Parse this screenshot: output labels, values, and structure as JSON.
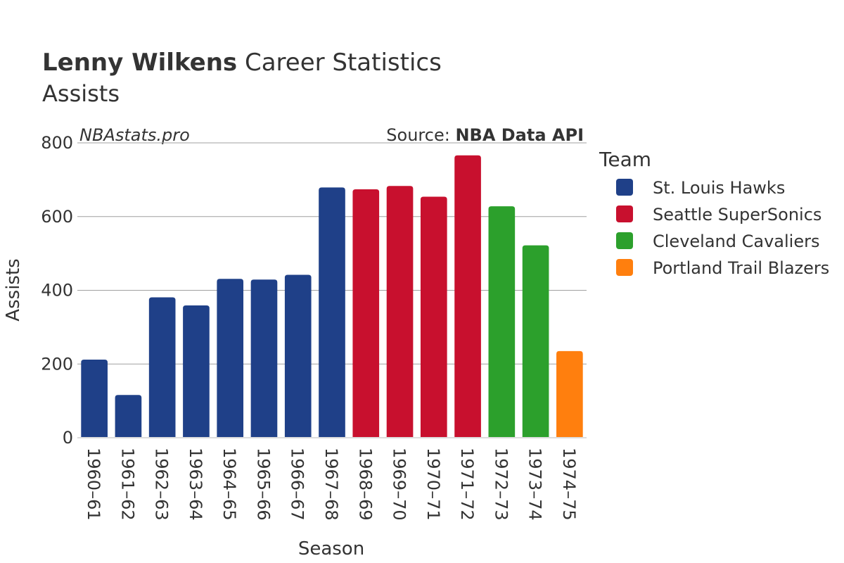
{
  "header": {
    "title_bold": "Lenny Wilkens",
    "title_rest": " Career Statistics",
    "subtitle": "Assists"
  },
  "watermark": {
    "site": "NBAstats.pro",
    "source_prefix": "Source: ",
    "source_name": "NBA Data API"
  },
  "legend": {
    "title": "Team"
  },
  "chart_data": {
    "type": "bar",
    "title": "Lenny Wilkens Career Statistics",
    "subtitle": "Assists",
    "xlabel": "Season",
    "ylabel": "Assists",
    "ylim": [
      0,
      800
    ],
    "yticks": [
      0,
      200,
      400,
      600,
      800
    ],
    "grid": true,
    "legend_position": "right",
    "categories": [
      "1960–61",
      "1961–62",
      "1962–63",
      "1963–64",
      "1964–65",
      "1965–66",
      "1966–67",
      "1967–68",
      "1968–69",
      "1969–70",
      "1970–71",
      "1971–72",
      "1972–73",
      "1973–74",
      "1974–75"
    ],
    "values": [
      212,
      116,
      381,
      359,
      431,
      429,
      442,
      679,
      674,
      683,
      654,
      766,
      628,
      522,
      235
    ],
    "bar_team": [
      0,
      0,
      0,
      0,
      0,
      0,
      0,
      0,
      1,
      1,
      1,
      1,
      2,
      2,
      3
    ],
    "series": [
      {
        "name": "St. Louis Hawks",
        "color": "#1f4088"
      },
      {
        "name": "Seattle SuperSonics",
        "color": "#c8102e"
      },
      {
        "name": "Cleveland Cavaliers",
        "color": "#2ca02c"
      },
      {
        "name": "Portland Trail Blazers",
        "color": "#ff7f0e"
      }
    ]
  }
}
